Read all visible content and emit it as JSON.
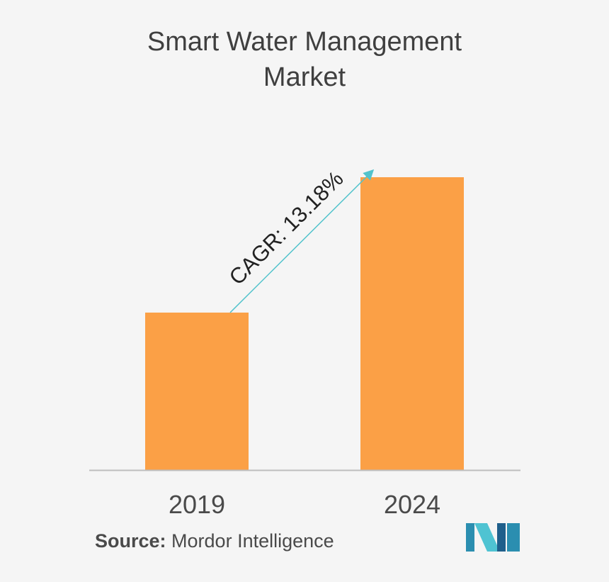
{
  "title_lines": [
    "Smart Water Management",
    "Market"
  ],
  "chart_data": {
    "type": "bar",
    "title": "Smart Water Management Market",
    "categories": [
      "2019",
      "2024"
    ],
    "values": [
      1.0,
      1.86
    ],
    "ylim": [
      0,
      2.0
    ],
    "xlabel": "",
    "ylabel": "",
    "grid": false,
    "bar_color": "#fba046",
    "annotation": {
      "text": "CAGR: 13.18%",
      "arrow_color": "#52c3cc"
    }
  },
  "source": {
    "label": "Source:",
    "text": "Mordor Intelligence"
  },
  "logo": {
    "name": "mordor-intelligence-logo",
    "colors": [
      "#2b8eb0",
      "#4fc3d2",
      "#1f5f8b"
    ]
  }
}
